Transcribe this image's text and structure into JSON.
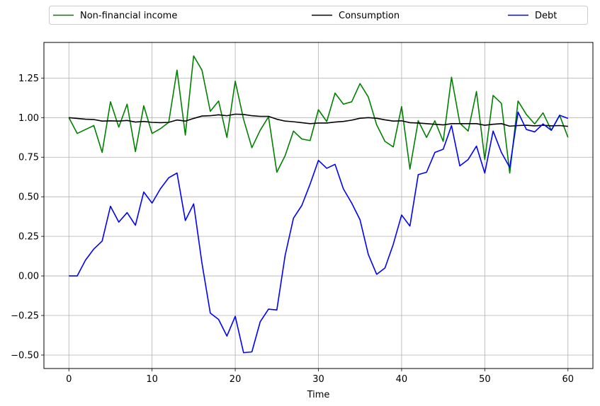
{
  "chart_data": {
    "type": "line",
    "title": "",
    "xlabel": "Time",
    "ylabel": "",
    "xlim": [
      -3,
      63
    ],
    "ylim": [
      -0.585,
      1.475
    ],
    "xticks": [
      0,
      10,
      20,
      30,
      40,
      50,
      60
    ],
    "yticks": [
      -0.5,
      -0.25,
      0.0,
      0.25,
      0.5,
      0.75,
      1.0,
      1.25
    ],
    "xtick_labels": [
      "0",
      "10",
      "20",
      "30",
      "40",
      "50",
      "60"
    ],
    "ytick_labels": [
      "−0.50",
      "−0.25",
      "0.00",
      "0.25",
      "0.50",
      "0.75",
      "1.00",
      "1.25"
    ],
    "grid": true,
    "legend_position": "top, above plot, spanning width",
    "x": [
      0,
      1,
      2,
      3,
      4,
      5,
      6,
      7,
      8,
      9,
      10,
      11,
      12,
      13,
      14,
      15,
      16,
      17,
      18,
      19,
      20,
      21,
      22,
      23,
      24,
      25,
      26,
      27,
      28,
      29,
      30,
      31,
      32,
      33,
      34,
      35,
      36,
      37,
      38,
      39,
      40,
      41,
      42,
      43,
      44,
      45,
      46,
      47,
      48,
      49,
      50,
      51,
      52,
      53,
      54,
      55,
      56,
      57,
      58,
      59,
      60
    ],
    "series": [
      {
        "name": "Non-financial income",
        "color": "#008000",
        "values": [
          1.0,
          0.9,
          0.925,
          0.95,
          0.78,
          1.1,
          0.94,
          1.085,
          0.785,
          1.075,
          0.9,
          0.93,
          0.97,
          1.3,
          0.89,
          1.39,
          1.3,
          1.04,
          1.105,
          0.875,
          1.23,
          0.99,
          0.81,
          0.92,
          1.005,
          0.655,
          0.76,
          0.915,
          0.865,
          0.855,
          1.05,
          0.975,
          1.155,
          1.085,
          1.1,
          1.215,
          1.13,
          0.955,
          0.85,
          0.815,
          1.07,
          0.675,
          0.98,
          0.875,
          0.98,
          0.85,
          1.255,
          0.965,
          0.915,
          1.165,
          0.735,
          1.14,
          1.09,
          0.65,
          1.105,
          1.02,
          0.96,
          1.03,
          0.92,
          1.015,
          0.875
        ]
      },
      {
        "name": "Consumption",
        "color": "#000000",
        "values": [
          1.0,
          0.995,
          0.99,
          0.988,
          0.978,
          0.98,
          0.978,
          0.982,
          0.972,
          0.976,
          0.97,
          0.968,
          0.97,
          0.985,
          0.978,
          0.995,
          1.01,
          1.012,
          1.018,
          1.012,
          1.022,
          1.02,
          1.012,
          1.008,
          1.008,
          0.99,
          0.978,
          0.974,
          0.968,
          0.962,
          0.966,
          0.966,
          0.972,
          0.976,
          0.984,
          0.996,
          1.0,
          0.996,
          0.986,
          0.978,
          0.98,
          0.968,
          0.966,
          0.962,
          0.958,
          0.954,
          0.962,
          0.962,
          0.962,
          0.962,
          0.952,
          0.958,
          0.962,
          0.946,
          0.95,
          0.952,
          0.948,
          0.952,
          0.948,
          0.95,
          0.945
        ]
      },
      {
        "name": "Debt",
        "color": "#0000ff",
        "values": [
          0.0,
          0.0,
          0.1,
          0.17,
          0.22,
          0.44,
          0.34,
          0.4,
          0.32,
          0.53,
          0.46,
          0.55,
          0.62,
          0.65,
          0.35,
          0.455,
          0.08,
          -0.235,
          -0.275,
          -0.38,
          -0.255,
          -0.485,
          -0.48,
          -0.29,
          -0.21,
          -0.215,
          0.13,
          0.365,
          0.445,
          0.58,
          0.73,
          0.68,
          0.705,
          0.55,
          0.46,
          0.355,
          0.135,
          0.01,
          0.05,
          0.2,
          0.385,
          0.315,
          0.64,
          0.655,
          0.78,
          0.8,
          0.95,
          0.695,
          0.735,
          0.82,
          0.65,
          0.915,
          0.78,
          0.685,
          1.035,
          0.925,
          0.91,
          0.96,
          0.92,
          1.015,
          0.995
        ]
      }
    ]
  }
}
